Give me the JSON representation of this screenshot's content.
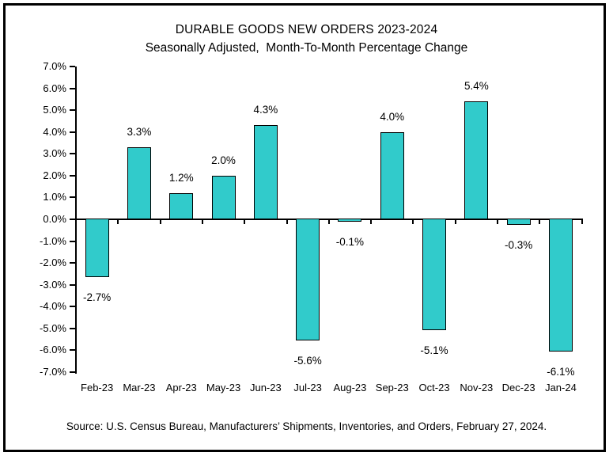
{
  "window": {
    "background": "#ffffff",
    "frame_border_color": "#000000"
  },
  "chart_data": {
    "type": "bar",
    "title": "DURABLE GOODS NEW ORDERS 2023-2024",
    "subtitle": "Seasonally Adjusted,  Month-To-Month Percentage Change",
    "categories": [
      "Feb-23",
      "Mar-23",
      "Apr-23",
      "May-23",
      "Jun-23",
      "Jul-23",
      "Aug-23",
      "Sep-23",
      "Oct-23",
      "Nov-23",
      "Dec-23",
      "Jan-24"
    ],
    "values": [
      -2.7,
      3.3,
      1.2,
      2.0,
      4.3,
      -5.6,
      -0.1,
      4.0,
      -5.1,
      5.4,
      -0.3,
      -6.1
    ],
    "value_labels": [
      "-2.7%",
      "3.3%",
      "1.2%",
      "2.0%",
      "4.3%",
      "-5.6%",
      "-0.1%",
      "4.0%",
      "-5.1%",
      "5.4%",
      "-0.3%",
      "-6.1%"
    ],
    "y_ticks": [
      "7.0%",
      "6.0%",
      "5.0%",
      "4.0%",
      "3.0%",
      "2.0%",
      "1.0%",
      "0.0%",
      "-1.0%",
      "-2.0%",
      "-3.0%",
      "-4.0%",
      "-5.0%",
      "-6.0%",
      "-7.0%"
    ],
    "ylim": [
      -7.0,
      7.0
    ],
    "y_tick_step": 1.0,
    "xlabel": "",
    "ylabel": "",
    "grid": false,
    "legend": false,
    "bar_color": "#31CBCB",
    "bar_border_color": "#000000",
    "axis_color": "#000000",
    "text_color": "#000000",
    "source_note": "Source: U.S. Census Bureau, Manufacturers’ Shipments, Inventories, and Orders, February 27, 2024."
  }
}
